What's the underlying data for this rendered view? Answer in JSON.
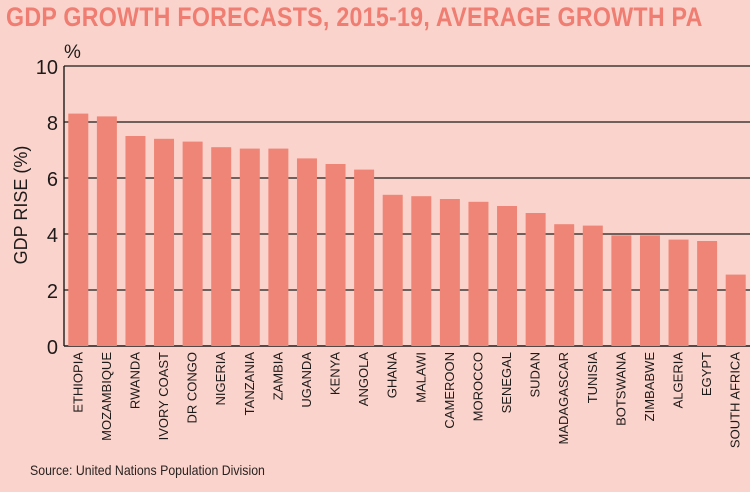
{
  "title": "GDP GROWTH FORECASTS, 2015-19, AVERAGE GROWTH PA",
  "source": "Source: United Nations Population Division",
  "colors": {
    "background": "#fad4cc",
    "bar": "#ee8576",
    "title": "#ef7d72",
    "axis": "#1e1a19"
  },
  "chart_data": {
    "type": "bar",
    "title": "GDP GROWTH FORECASTS, 2015-19, AVERAGE GROWTH PA",
    "ylabel": "GDP RISE (%)",
    "yunit": "%",
    "ylim": [
      0,
      10
    ],
    "yticks": [
      0,
      2,
      4,
      6,
      8,
      10
    ],
    "grid": true,
    "categories": [
      "ETHIOPIA",
      "MOZAMBIQUE",
      "RWANDA",
      "IVORY COAST",
      "DR CONGO",
      "NIGERIA",
      "TANZANIA",
      "ZAMBIA",
      "UGANDA",
      "KENYA",
      "ANGOLA",
      "GHANA",
      "MALAWI",
      "CAMEROON",
      "MOROCCO",
      "SENEGAL",
      "SUDAN",
      "MADAGASCAR",
      "TUNISIA",
      "BOTSWANA",
      "ZIMBABWE",
      "ALGERIA",
      "EGYPT",
      "SOUTH AFRICA"
    ],
    "values": [
      8.3,
      8.2,
      7.5,
      7.4,
      7.3,
      7.1,
      7.05,
      7.05,
      6.7,
      6.5,
      6.3,
      5.4,
      5.35,
      5.25,
      5.15,
      5.0,
      4.75,
      4.35,
      4.3,
      3.95,
      3.95,
      3.8,
      3.75,
      2.55
    ]
  }
}
